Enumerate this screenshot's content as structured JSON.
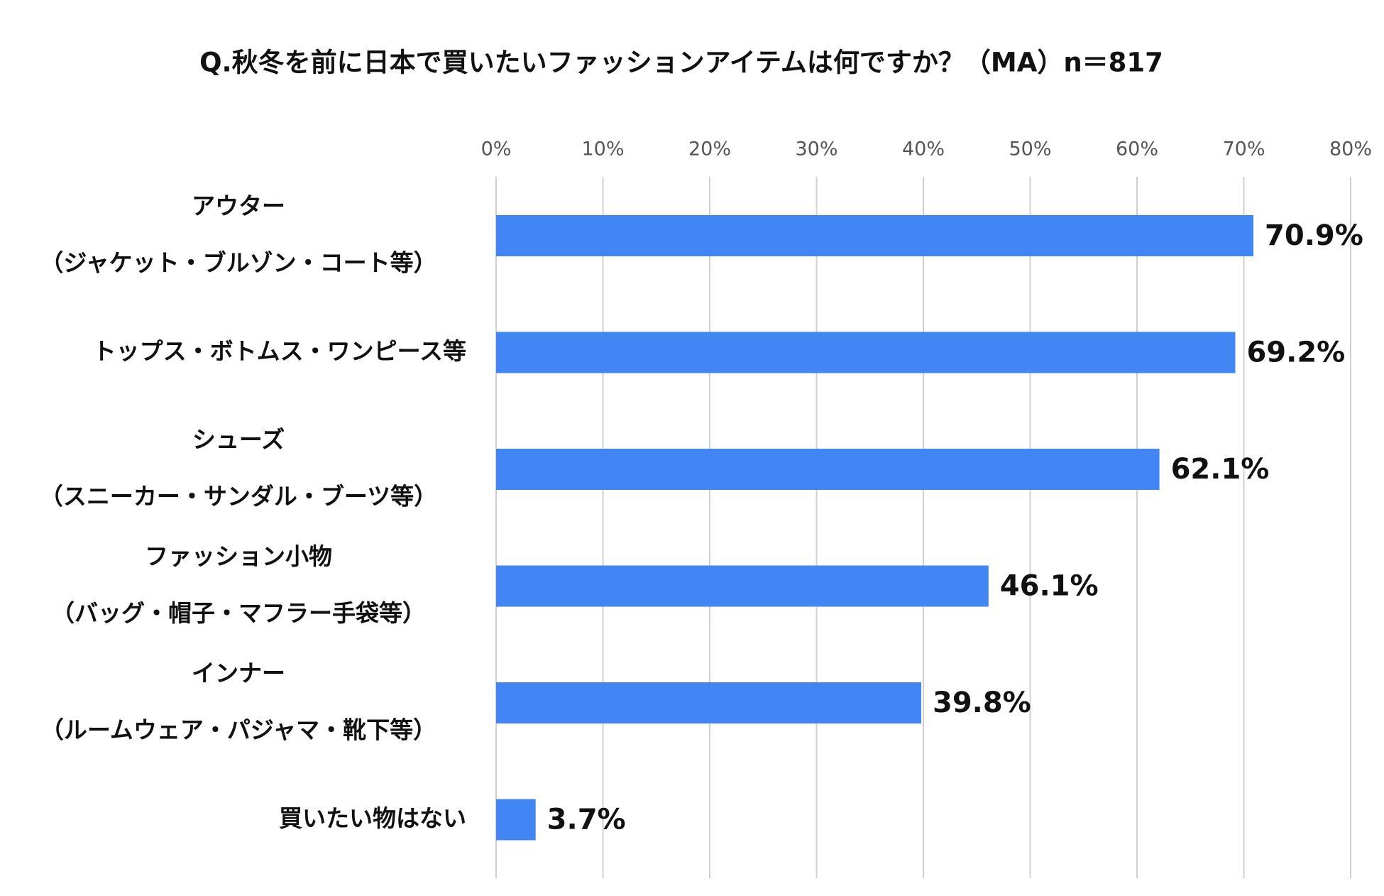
{
  "chart_data": {
    "type": "bar",
    "orientation": "horizontal",
    "title": "Q.秋冬を前に日本で買いたいファッションアイテムは何ですか？（MA）n＝817",
    "categories": [
      [
        "アウター",
        "（ジャケット・ブルゾン・コート等）"
      ],
      [
        "トップス・ボトムス・ワンピース等"
      ],
      [
        "シューズ",
        "（スニーカー・サンダル・ブーツ等）"
      ],
      [
        "ファッション小物",
        "（バッグ・帽子・マフラー手袋等）"
      ],
      [
        "インナー",
        "（ルームウェア・パジャマ・靴下等）"
      ],
      [
        "買いたい物はない"
      ]
    ],
    "values": [
      70.9,
      69.2,
      62.1,
      46.1,
      39.8,
      3.7
    ],
    "value_labels": [
      "70.9%",
      "69.2%",
      "62.1%",
      "46.1%",
      "39.8%",
      "3.7%"
    ],
    "color": "#4285f4",
    "xlim": [
      0,
      80
    ],
    "xticks": [
      {
        "value": 0,
        "label": "0%"
      },
      {
        "value": 10,
        "label": "10%"
      },
      {
        "value": 20,
        "label": "20%"
      },
      {
        "value": 30,
        "label": "30%"
      },
      {
        "value": 40,
        "label": "40%"
      },
      {
        "value": 50,
        "label": "50%"
      },
      {
        "value": 60,
        "label": "60%"
      },
      {
        "value": 70,
        "label": "70%"
      },
      {
        "value": 80,
        "label": "80%"
      }
    ],
    "grid": true
  }
}
